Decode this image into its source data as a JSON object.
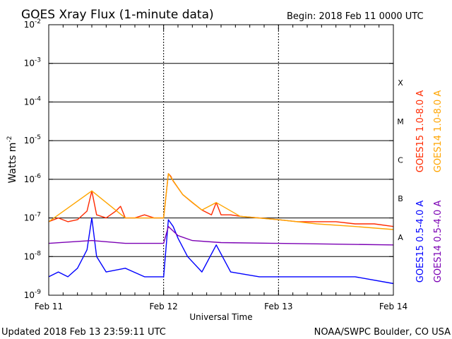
{
  "header": {
    "title": "GOES Xray Flux (1-minute data)",
    "begin": "Begin:  2018 Feb 11 0000 UTC"
  },
  "footer": {
    "updated": "Updated 2018 Feb 13 23:59:11 UTC",
    "credit": "NOAA/SWPC Boulder, CO USA"
  },
  "chart_data": {
    "type": "line",
    "title": "GOES Xray Flux (1-minute data)",
    "xlabel": "Universal Time",
    "ylabel": "Watts m-2",
    "ylabel_base": "Watts m",
    "ylabel_exp": "-2",
    "yscale": "log",
    "ylim": [
      1e-09,
      0.01
    ],
    "xlim": [
      "2018-02-11T00:00",
      "2018-02-14T00:00"
    ],
    "x_ticks": [
      "Feb 11",
      "Feb 12",
      "Feb 13",
      "Feb 14"
    ],
    "y_ticks": [
      {
        "base": "10",
        "exp": "-9"
      },
      {
        "base": "10",
        "exp": "-8"
      },
      {
        "base": "10",
        "exp": "-7"
      },
      {
        "base": "10",
        "exp": "-6"
      },
      {
        "base": "10",
        "exp": "-5"
      },
      {
        "base": "10",
        "exp": "-4"
      },
      {
        "base": "10",
        "exp": "-3"
      },
      {
        "base": "10",
        "exp": "-2"
      }
    ],
    "flare_classes": [
      "A",
      "B",
      "C",
      "M",
      "X"
    ],
    "grid": true,
    "legend_position": "right (vertical)",
    "series": [
      {
        "name": "GOES15 1.0-8.0 A",
        "color": "#ff2a00",
        "x": [
          "2018-02-11T00:00",
          "2018-02-11T02:00",
          "2018-02-11T04:00",
          "2018-02-11T06:00",
          "2018-02-11T08:00",
          "2018-02-11T09:00",
          "2018-02-11T10:00",
          "2018-02-11T12:00",
          "2018-02-11T14:00",
          "2018-02-11T15:00",
          "2018-02-11T16:00",
          "2018-02-11T18:00",
          "2018-02-11T20:00",
          "2018-02-11T22:00",
          "2018-02-12T00:00",
          "2018-02-12T01:00",
          "2018-02-12T01:30",
          "2018-02-12T02:00",
          "2018-02-12T03:00",
          "2018-02-12T04:00",
          "2018-02-12T06:00",
          "2018-02-12T08:00",
          "2018-02-12T10:00",
          "2018-02-12T11:00",
          "2018-02-12T12:00",
          "2018-02-12T14:00",
          "2018-02-12T16:00",
          "2018-02-12T20:00",
          "2018-02-13T00:00",
          "2018-02-13T04:00",
          "2018-02-13T08:00",
          "2018-02-13T12:00",
          "2018-02-13T16:00",
          "2018-02-13T20:00",
          "2018-02-14T00:00"
        ],
        "y": [
          8e-08,
          1e-07,
          8e-08,
          9e-08,
          1.5e-07,
          5e-07,
          1.2e-07,
          1e-07,
          1.5e-07,
          2e-07,
          1e-07,
          1e-07,
          1.2e-07,
          1e-07,
          1e-07,
          1.4e-06,
          1.2e-06,
          9e-07,
          6e-07,
          4e-07,
          2.5e-07,
          1.6e-07,
          1.2e-07,
          2.5e-07,
          1.2e-07,
          1.2e-07,
          1.1e-07,
          1e-07,
          9e-08,
          8e-08,
          8e-08,
          8e-08,
          7e-08,
          7e-08,
          6e-08
        ]
      },
      {
        "name": "GOES14 1.0-8.0 A",
        "color": "#ffa500",
        "x": [
          "2018-02-11T00:00",
          "2018-02-11T09:00",
          "2018-02-11T16:00",
          "2018-02-12T00:00",
          "2018-02-12T01:00",
          "2018-02-12T04:00",
          "2018-02-12T08:00",
          "2018-02-12T11:00",
          "2018-02-12T16:00",
          "2018-02-13T00:00",
          "2018-02-13T08:00",
          "2018-02-13T16:00",
          "2018-02-14T00:00"
        ],
        "y": [
          8e-08,
          5e-07,
          1e-07,
          1e-07,
          1.4e-06,
          4e-07,
          1.6e-07,
          2.5e-07,
          1.1e-07,
          9e-08,
          7e-08,
          6e-08,
          5e-08
        ]
      },
      {
        "name": "GOES15 0.5-4.0 A",
        "color": "#0000ff",
        "x": [
          "2018-02-11T00:00",
          "2018-02-11T02:00",
          "2018-02-11T04:00",
          "2018-02-11T06:00",
          "2018-02-11T08:00",
          "2018-02-11T09:00",
          "2018-02-11T10:00",
          "2018-02-11T12:00",
          "2018-02-11T16:00",
          "2018-02-11T20:00",
          "2018-02-12T00:00",
          "2018-02-12T01:00",
          "2018-02-12T02:00",
          "2018-02-12T03:00",
          "2018-02-12T05:00",
          "2018-02-12T08:00",
          "2018-02-12T11:00",
          "2018-02-12T14:00",
          "2018-02-12T20:00",
          "2018-02-13T00:00",
          "2018-02-13T08:00",
          "2018-02-13T16:00",
          "2018-02-14T00:00"
        ],
        "y": [
          3e-09,
          4e-09,
          3e-09,
          5e-09,
          1.5e-08,
          1e-07,
          1e-08,
          4e-09,
          5e-09,
          3e-09,
          3e-09,
          9e-08,
          6e-08,
          3e-08,
          1e-08,
          4e-09,
          2e-08,
          4e-09,
          3e-09,
          3e-09,
          3e-09,
          3e-09,
          2e-09
        ]
      },
      {
        "name": "GOES14 0.5-4.0 A",
        "color": "#7b00b4",
        "x": [
          "2018-02-11T00:00",
          "2018-02-11T09:00",
          "2018-02-11T16:00",
          "2018-02-12T00:00",
          "2018-02-12T01:00",
          "2018-02-12T03:00",
          "2018-02-12T06:00",
          "2018-02-12T12:00",
          "2018-02-13T00:00",
          "2018-02-13T12:00",
          "2018-02-14T00:00"
        ],
        "y": [
          2.2e-08,
          2.6e-08,
          2.2e-08,
          2.2e-08,
          6e-08,
          3.5e-08,
          2.6e-08,
          2.3e-08,
          2.2e-08,
          2.1e-08,
          2e-08
        ]
      }
    ]
  }
}
